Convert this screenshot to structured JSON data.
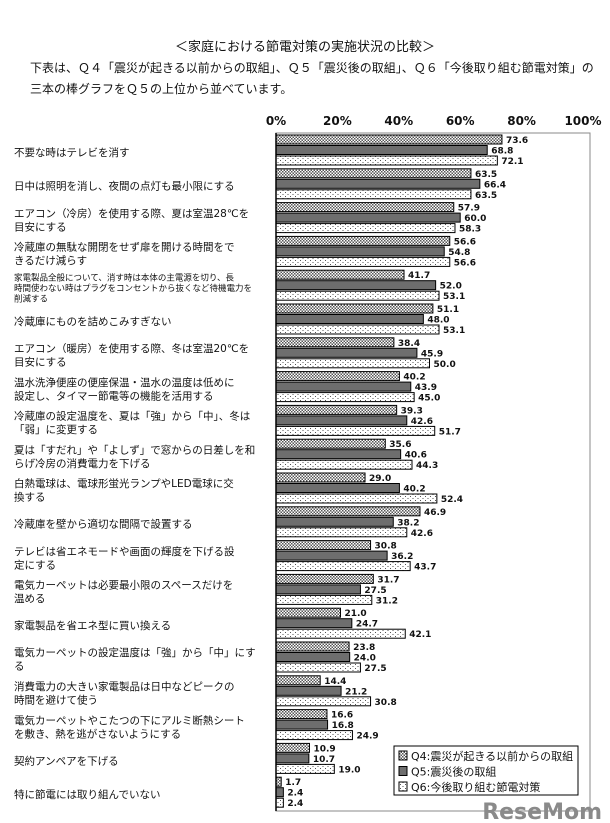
{
  "title": "＜家庭における節電対策の実施状況の比較＞",
  "description": "下表は、Ｑ４「震災が起きる以前からの取組」、Ｑ５「震災後の取組」、Ｑ６「今後取り組む節電対策」の三本の棒グラフをＱ５の上位から並べています。",
  "watermark": "ReseMom",
  "chart_data": {
    "type": "bar",
    "orientation": "horizontal",
    "xlim": [
      0,
      100
    ],
    "x_ticks": [
      "0%",
      "20%",
      "40%",
      "60%",
      "80%",
      "100%"
    ],
    "legend_position": "bottom-right",
    "grid": false,
    "categories": [
      [
        "不要な時はテレビを消す"
      ],
      [
        "日中は照明を消し、夜間の点灯も最小限にする"
      ],
      [
        "エアコン（冷房）を使用する際、夏は室温28℃を",
        "目安にする"
      ],
      [
        "冷蔵庫の無駄な開閉をせず扉を開ける時間をで",
        "きるだけ減らす"
      ],
      [
        "家電製品全般について、消す時は本体の主電源を切り、長",
        "時間使わない時はプラグをコンセントから抜くなど待機電力を",
        "削減する"
      ],
      [
        "冷蔵庫にものを詰めこみすぎない"
      ],
      [
        "エアコン（暖房）を使用する際、冬は室温20℃を",
        "目安にする"
      ],
      [
        "温水洗浄便座の便座保温・温水の温度は低めに",
        "設定し、タイマー節電等の機能を活用する"
      ],
      [
        "冷蔵庫の設定温度を、夏は「強」から「中」、冬は",
        "「弱」に変更する"
      ],
      [
        "夏は「すだれ」や「よしず」で窓からの日差しを和",
        "らげ冷房の消費電力を下げる"
      ],
      [
        "白熱電球は、電球形蛍光ランプやLED電球に交",
        "換する"
      ],
      [
        "冷蔵庫を壁から適切な間隔で設置する"
      ],
      [
        "テレビは省エネモードや画面の輝度を下げる設",
        "定にする"
      ],
      [
        "電気カーペットは必要最小限のスペースだけを",
        "温める"
      ],
      [
        "家電製品を省エネ型に買い換える"
      ],
      [
        "電気カーペットの設定温度は「強」から「中」にす",
        "る"
      ],
      [
        "消費電力の大きい家電製品は日中などピークの",
        "時間を避けて使う"
      ],
      [
        "電気カーペットやこたつの下にアルミ断熱シート",
        "を敷き、熱を逃がさないようにする"
      ],
      [
        "契約アンペアを下げる"
      ],
      [
        "特に節電には取り組んでいない"
      ]
    ],
    "series": [
      {
        "name": "Q4:震災が起きる以前からの取組",
        "color": "#bdbdbd",
        "pattern": "dense-dots",
        "values": [
          73.6,
          63.5,
          57.9,
          56.6,
          41.7,
          51.1,
          38.4,
          40.2,
          39.3,
          35.6,
          29.0,
          46.9,
          30.8,
          31.7,
          21.0,
          23.8,
          14.4,
          16.6,
          10.9,
          1.7
        ]
      },
      {
        "name": "Q5:震災後の取組",
        "color": "#6e6e6e",
        "pattern": "solid",
        "values": [
          68.8,
          66.4,
          60.0,
          54.8,
          52.0,
          48.0,
          45.9,
          43.9,
          42.6,
          40.6,
          40.2,
          38.2,
          36.2,
          27.5,
          24.7,
          24.0,
          21.2,
          16.8,
          10.7,
          2.4
        ]
      },
      {
        "name": "Q6:今後取り組む節電対策",
        "color": "#ffffff",
        "pattern": "sparse-dots",
        "values": [
          72.1,
          63.5,
          58.3,
          56.6,
          53.1,
          53.1,
          50.0,
          45.0,
          51.7,
          44.3,
          52.4,
          42.6,
          43.7,
          31.2,
          42.1,
          27.5,
          30.8,
          24.9,
          19.0,
          2.4
        ]
      }
    ]
  }
}
